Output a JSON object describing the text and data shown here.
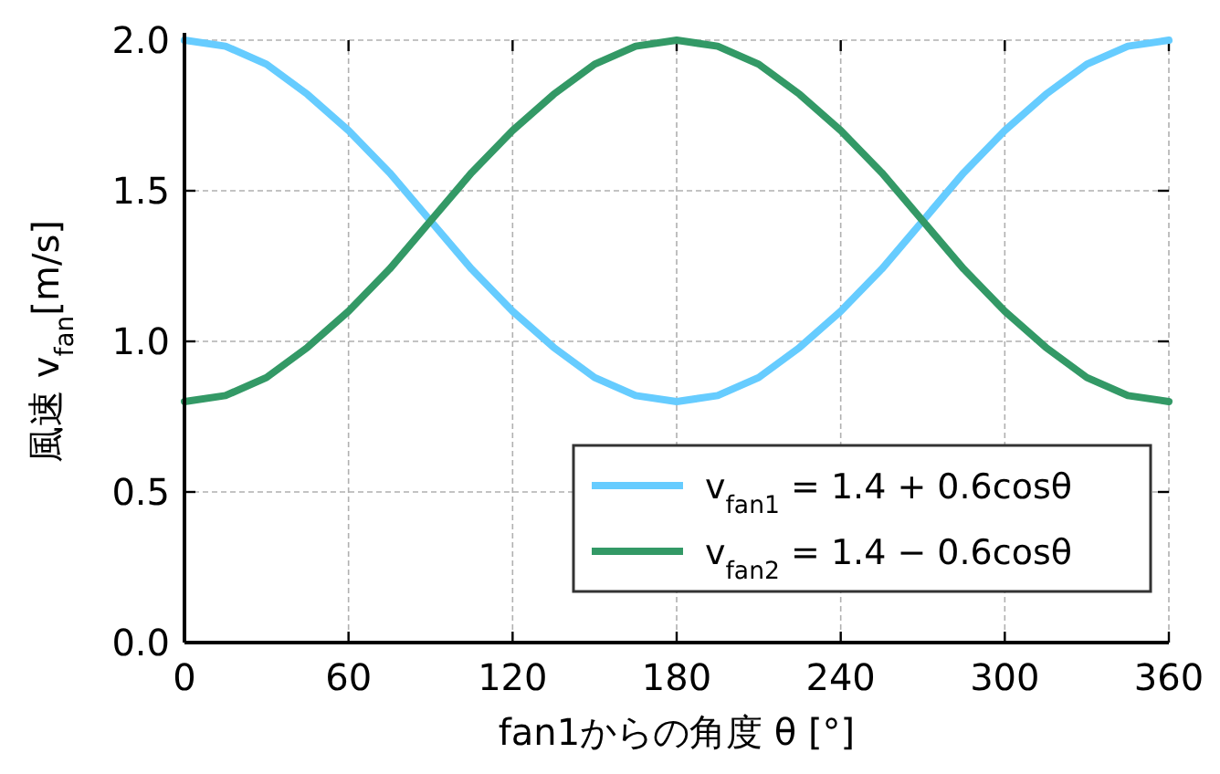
{
  "chart_data": {
    "type": "line",
    "xlabel": "fan1からの角度 θ [°]",
    "ylabel": "風速 v$_{fan}$[m/s]",
    "x": [
      0,
      15,
      30,
      45,
      60,
      75,
      90,
      105,
      120,
      135,
      150,
      165,
      180,
      195,
      210,
      225,
      240,
      255,
      270,
      285,
      300,
      315,
      330,
      345,
      360
    ],
    "series": [
      {
        "name": "v$_{fan1}$ = 1.4 + 0.6cosθ",
        "color": "#66ccff",
        "values": [
          2.0,
          1.98,
          1.92,
          1.82,
          1.7,
          1.56,
          1.4,
          1.24,
          1.1,
          0.98,
          0.88,
          0.82,
          0.8,
          0.82,
          0.88,
          0.98,
          1.1,
          1.24,
          1.4,
          1.56,
          1.7,
          1.82,
          1.92,
          1.98,
          2.0
        ]
      },
      {
        "name": "v$_{fan2}$ = 1.4 − 0.6cosθ",
        "color": "#339966",
        "values": [
          0.8,
          0.82,
          0.88,
          0.98,
          1.1,
          1.24,
          1.4,
          1.56,
          1.7,
          1.82,
          1.92,
          1.98,
          2.0,
          1.98,
          1.92,
          1.82,
          1.7,
          1.56,
          1.4,
          1.24,
          1.1,
          0.98,
          0.88,
          0.82,
          0.8
        ]
      }
    ],
    "xlim": [
      0,
      360
    ],
    "xticks": [
      0,
      60,
      120,
      180,
      240,
      300,
      360
    ],
    "ylim": [
      0,
      2
    ],
    "yticks": [
      {
        "value": 0,
        "label": "0.0"
      },
      0.5,
      {
        "value": 1,
        "label": "1.0"
      },
      1.5,
      {
        "value": 2,
        "label": "2.0"
      }
    ],
    "grid": true,
    "legend": "bottom right",
    "marker": "none",
    "line_style": "solid"
  }
}
